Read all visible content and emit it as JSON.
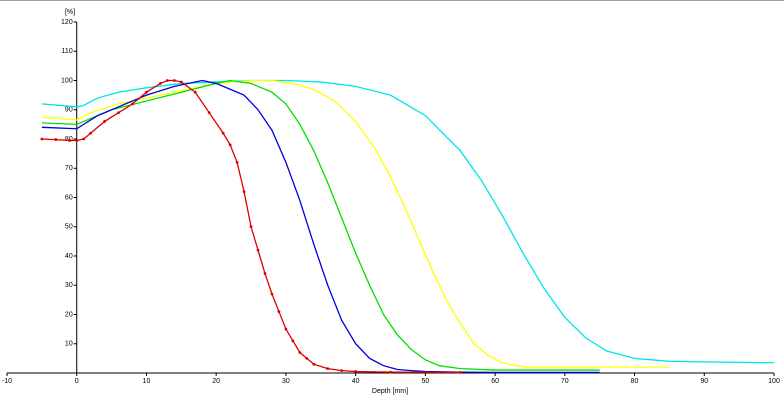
{
  "chart_data": {
    "type": "line",
    "x_label": "Depth [mm]",
    "y_label": "[%]",
    "xlim": [
      -10,
      100
    ],
    "ylim": [
      0,
      120
    ],
    "xticks": [
      -10,
      0,
      10,
      20,
      30,
      40,
      50,
      60,
      70,
      80,
      90,
      100
    ],
    "yticks": [
      10,
      20,
      30,
      40,
      50,
      60,
      70,
      80,
      90,
      100,
      110,
      120
    ],
    "series": [
      {
        "color": "#00e5e5",
        "markers": false,
        "x": [
          -5,
          0,
          1,
          3,
          6,
          10,
          15,
          20,
          25,
          30,
          35,
          40,
          45,
          50,
          55,
          58,
          61,
          64,
          67,
          70,
          73,
          76,
          80,
          85,
          90,
          100
        ],
        "values": [
          92,
          91,
          91.5,
          94,
          96,
          97.5,
          99,
          99.5,
          100,
          100,
          99.5,
          98,
          95,
          88,
          76,
          66,
          54,
          41,
          29,
          19,
          12,
          7.5,
          5,
          4,
          3.8,
          3.5
        ]
      },
      {
        "color": "#ffff00",
        "markers": false,
        "x": [
          -5,
          0,
          2,
          6,
          10,
          15,
          20,
          25,
          28,
          31,
          34,
          37,
          40,
          43,
          45,
          47,
          49,
          51,
          53,
          55,
          57,
          59,
          61,
          63,
          65,
          70,
          80,
          85
        ],
        "values": [
          87.5,
          86.5,
          89,
          92,
          94,
          96.5,
          99,
          100,
          100,
          99,
          97,
          93,
          86,
          76,
          67,
          57,
          46,
          35,
          25,
          17,
          10,
          6,
          3.5,
          2.5,
          2,
          2,
          2,
          2
        ]
      },
      {
        "color": "#00e000",
        "markers": false,
        "x": [
          -5,
          0,
          1,
          5,
          10,
          15,
          20,
          22,
          25,
          28,
          30,
          32,
          34,
          36,
          38,
          40,
          42,
          44,
          46,
          48,
          50,
          52,
          55,
          60,
          70,
          75
        ],
        "values": [
          85.5,
          85,
          86,
          90,
          93,
          96,
          99,
          100,
          99,
          96,
          92,
          85,
          76,
          65,
          53,
          41,
          30,
          20,
          13,
          8,
          4.5,
          2.5,
          1.5,
          1,
          1,
          1
        ]
      },
      {
        "color": "#0000dd",
        "markers": false,
        "x": [
          -5,
          0,
          1,
          3,
          6,
          10,
          14,
          18,
          20,
          22,
          24,
          26,
          28,
          30,
          32,
          34,
          36,
          38,
          40,
          42,
          44,
          46,
          48,
          50,
          55,
          60,
          75
        ],
        "values": [
          84,
          83.5,
          85,
          88,
          91,
          95,
          98,
          100,
          99,
          97,
          95,
          90,
          83,
          72,
          59,
          44,
          30,
          18,
          10,
          5,
          2.5,
          1.2,
          0.8,
          0.5,
          0.3,
          0.2,
          0.2
        ]
      },
      {
        "color": "#dd0000",
        "markers": true,
        "x": [
          -5,
          -3,
          -1,
          0,
          1,
          2,
          4,
          6,
          8,
          10,
          12,
          13,
          14,
          15,
          17,
          19,
          21,
          22,
          23,
          24,
          25,
          26,
          27,
          28,
          29,
          30,
          31,
          32,
          33,
          34,
          36,
          38,
          40,
          45,
          55
        ],
        "values": [
          80,
          79.8,
          79.5,
          79.5,
          80,
          82,
          86,
          89,
          92,
          96,
          99,
          100,
          100,
          99.5,
          96,
          89,
          82,
          78,
          72,
          62,
          50,
          42,
          34,
          27,
          21,
          15,
          11,
          7,
          5,
          3,
          1.5,
          0.8,
          0.5,
          0.3,
          0.2
        ]
      }
    ]
  }
}
